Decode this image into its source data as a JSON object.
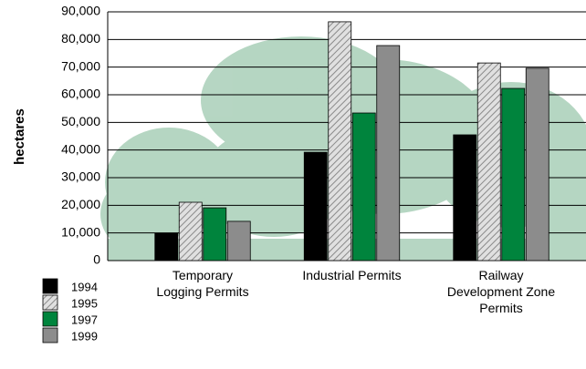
{
  "chart_data": {
    "type": "bar",
    "y_label": "hectares",
    "categories": [
      "Temporary\nLogging Permits",
      "Industrial Permits",
      "Railway\nDevelopment Zone\nPermits"
    ],
    "series": [
      {
        "name": "1994",
        "color": "#000000",
        "values": [
          9900,
          39200,
          45500
        ]
      },
      {
        "name": "1995",
        "color": "#b5b5b5",
        "values": [
          21100,
          86400,
          71500
        ]
      },
      {
        "name": "1997",
        "color": "#00843d",
        "values": [
          19100,
          53400,
          62300
        ]
      },
      {
        "name": "1999",
        "color": "#8c8c8c",
        "values": [
          14200,
          77800,
          69600
        ]
      }
    ],
    "hatched_series": "1995",
    "ylim": [
      0,
      90000
    ],
    "yticks": [
      0,
      {
        "value": 10000,
        "label": "10,000"
      },
      {
        "value": 20000,
        "label": "20,000"
      },
      {
        "value": 30000,
        "label": "30,000"
      },
      {
        "value": 40000,
        "label": "40,000"
      },
      {
        "value": 50000,
        "label": "50,000"
      },
      {
        "value": 60000,
        "label": "60,000"
      },
      {
        "value": 70000,
        "label": "70,000"
      },
      {
        "value": 80000,
        "label": "80,000"
      },
      {
        "value": 90000,
        "label": "90,000"
      }
    ],
    "grid": true,
    "legend": "lower left"
  }
}
